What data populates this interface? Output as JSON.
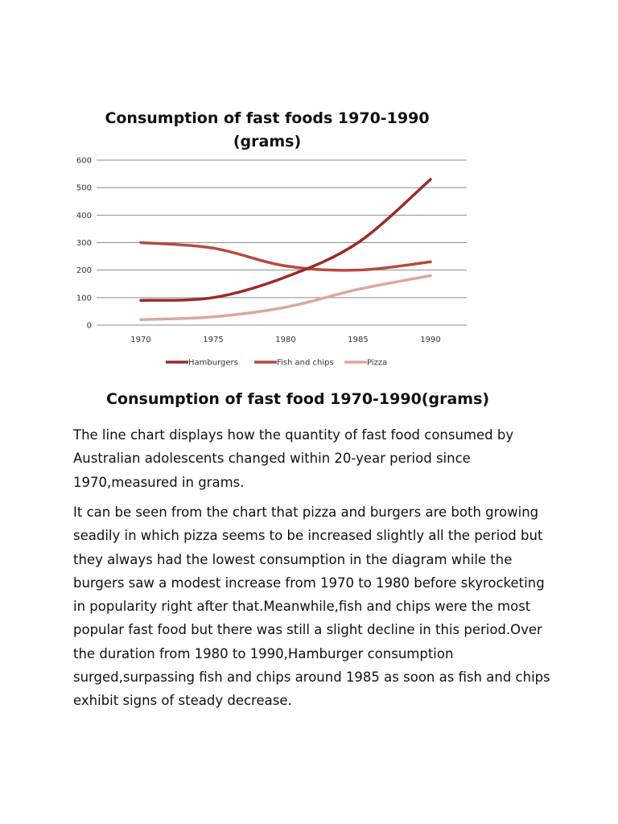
{
  "chart_data": {
    "type": "line",
    "title": "Consumption of fast foods 1970-1990",
    "subtitle": "(grams)",
    "categories": [
      "1970",
      "1975",
      "1980",
      "1985",
      "1990"
    ],
    "y_ticks": [
      "0",
      "100",
      "200",
      "300",
      "400",
      "500",
      "600"
    ],
    "ylim": [
      0,
      600
    ],
    "grid": true,
    "legend_position": "bottom",
    "series": [
      {
        "name": "Hamburgers",
        "values": [
          90,
          100,
          175,
          300,
          530
        ],
        "color": "#9b2b25"
      },
      {
        "name": "Fish and chips",
        "values": [
          300,
          280,
          215,
          200,
          230
        ],
        "color": "#b64a40"
      },
      {
        "name": "Pizza",
        "values": [
          20,
          30,
          65,
          130,
          180
        ],
        "color": "#dba7a3"
      }
    ]
  },
  "document": {
    "heading": "Consumption of fast food 1970-1990(grams)",
    "paragraphs": [
      {
        "lines": [
          "The line chart displays how the quantity of fast food consumed by",
          "Australian adolescents changed within 20-year period since",
          "1970,measured in grams."
        ]
      },
      {
        "lines": [
          "It can be seen from the chart that pizza and burgers are both growing",
          "seadily in which pizza seems to be increased slightly all the period but",
          "they always had the lowest consumption in the diagram while the",
          "burgers saw a modest increase from 1970 to 1980 before skyrocketing",
          "in popularity right after that.Meanwhile,fish and chips were the most",
          "popular fast food but there was still a slight decline in this period.Over",
          "the duration from 1980 to 1990,Hamburger consumption",
          "surged,surpassing fish and chips around 1985 as soon as fish and chips",
          "exhibit signs of steady decrease."
        ]
      }
    ]
  }
}
